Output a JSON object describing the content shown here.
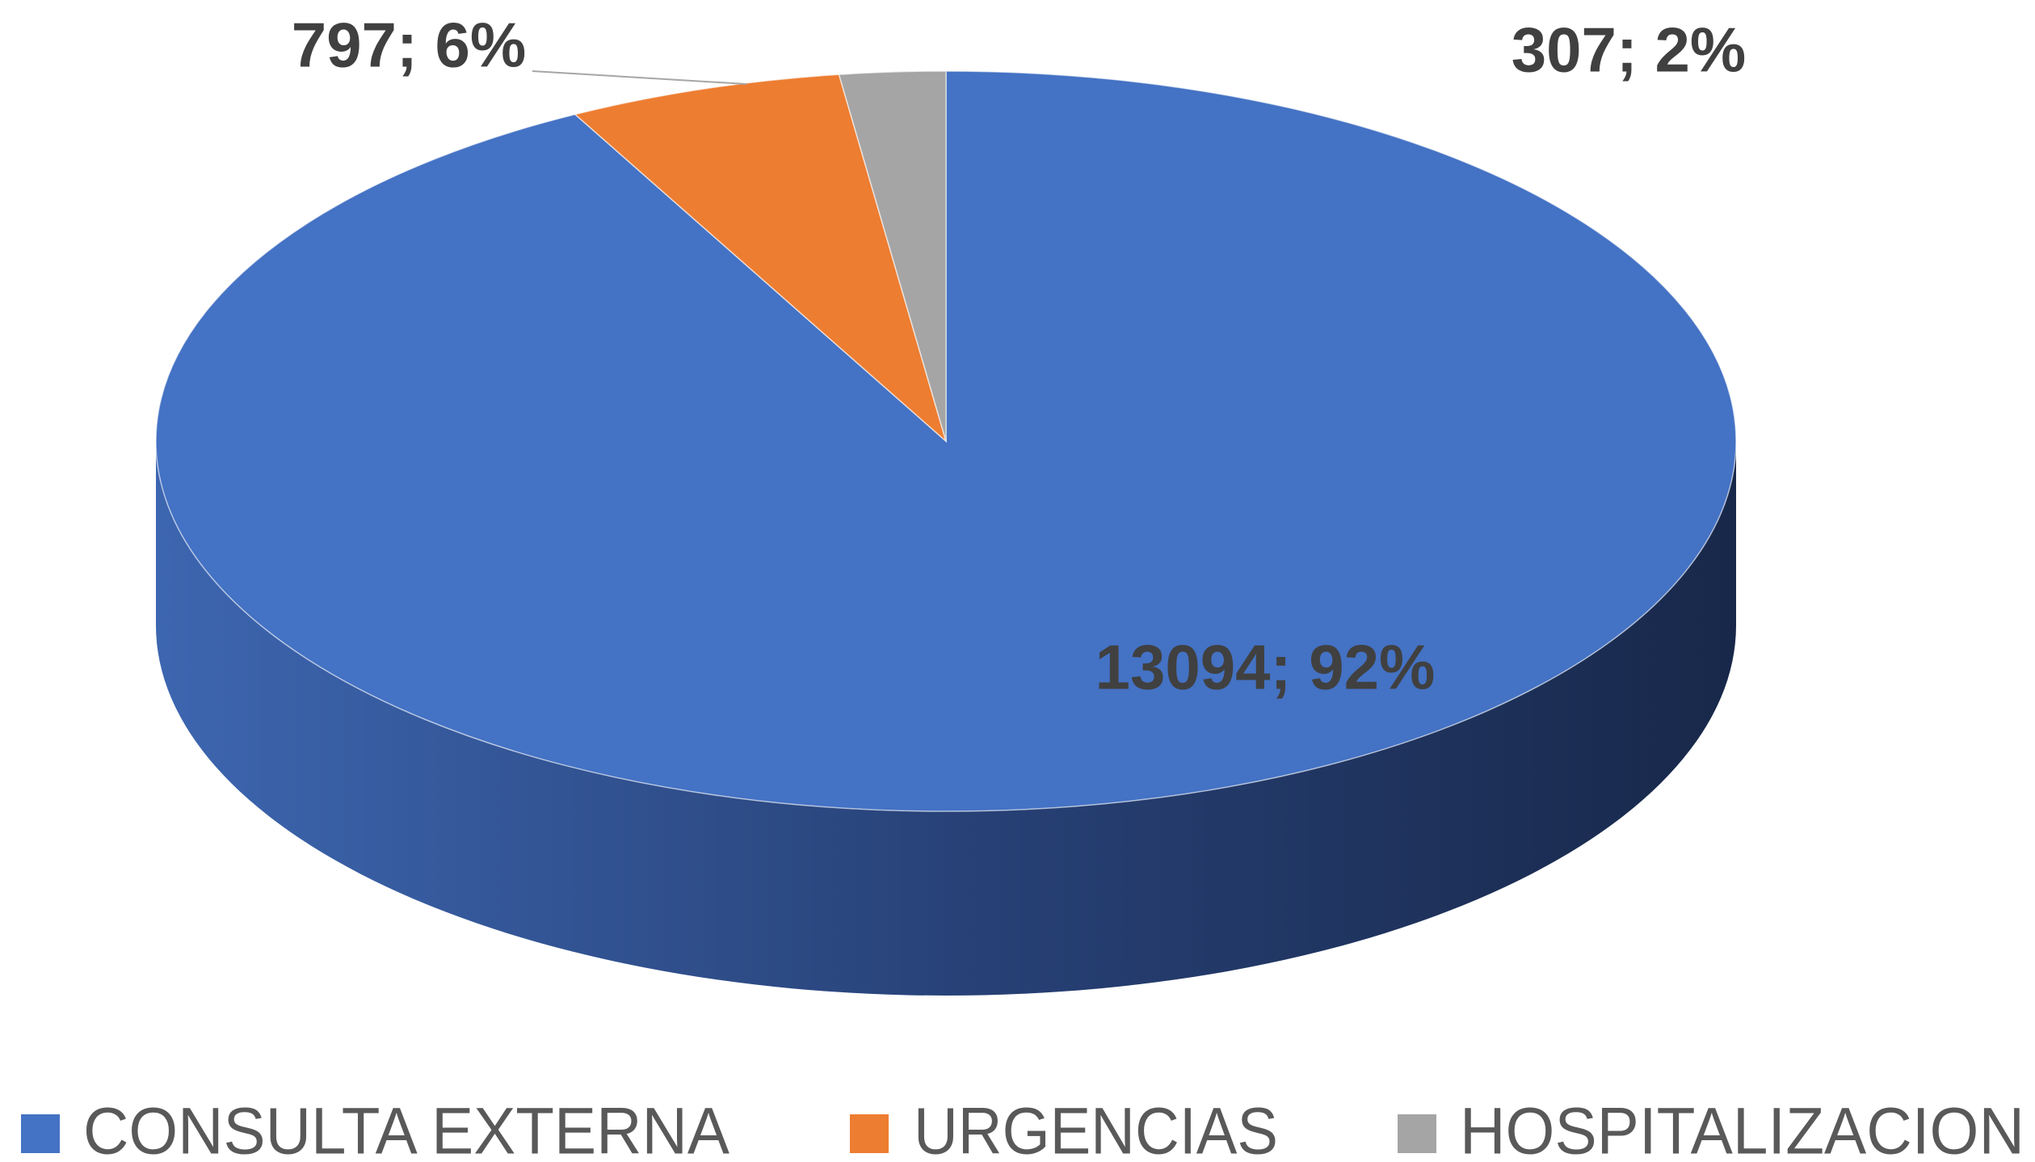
{
  "chart_data": {
    "type": "pie3d",
    "categories": [
      "CONSULTA EXTERNA",
      "URGENCIAS",
      "HOSPITALIZACION"
    ],
    "values": [
      13094,
      797,
      307
    ],
    "value_labels": [
      "13094; 92%",
      "797; 6%",
      "307; 2%"
    ],
    "colors": [
      "#4472c4",
      "#ed7d31",
      "#a5a5a5"
    ],
    "legend": "bottom"
  }
}
